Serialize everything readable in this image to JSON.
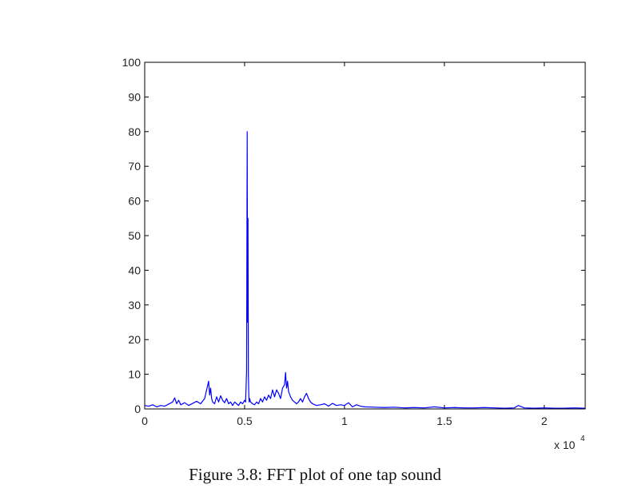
{
  "figure": {
    "caption": "Figure 3.8: FFT plot of one tap sound"
  },
  "chart_data": {
    "type": "line",
    "title": "",
    "xlabel": "",
    "ylabel": "",
    "x_multiplier_label": "x 10",
    "x_multiplier_exponent": "4",
    "xlim": [
      0,
      22050
    ],
    "ylim": [
      0,
      100
    ],
    "x_ticks": [
      {
        "value": 0,
        "label": "0"
      },
      {
        "value": 5000,
        "label": "0.5"
      },
      {
        "value": 10000,
        "label": "1"
      },
      {
        "value": 15000,
        "label": "1.5"
      },
      {
        "value": 20000,
        "label": "2"
      }
    ],
    "y_ticks": [
      {
        "value": 0,
        "label": "0"
      },
      {
        "value": 10,
        "label": "10"
      },
      {
        "value": 20,
        "label": "20"
      },
      {
        "value": 30,
        "label": "30"
      },
      {
        "value": 40,
        "label": "40"
      },
      {
        "value": 50,
        "label": "50"
      },
      {
        "value": 60,
        "label": "60"
      },
      {
        "value": 70,
        "label": "70"
      },
      {
        "value": 80,
        "label": "80"
      },
      {
        "value": 90,
        "label": "90"
      },
      {
        "value": 100,
        "label": "100"
      }
    ],
    "grid": false,
    "line_color": "#0000ff",
    "axis_color": "#000000",
    "series": [
      {
        "x": [
          0,
          200,
          400,
          600,
          800,
          1000,
          1200,
          1400,
          1500,
          1600,
          1700,
          1800,
          2000,
          2200,
          2400,
          2600,
          2800,
          3000,
          3100,
          3200,
          3250,
          3300,
          3350,
          3400,
          3500,
          3600,
          3700,
          3800,
          3900,
          4000,
          4100,
          4200,
          4300,
          4400,
          4500,
          4600,
          4700,
          4800,
          4900,
          5000,
          5050,
          5100,
          5130,
          5150,
          5170,
          5190,
          5210,
          5230,
          5250,
          5300,
          5400,
          5500,
          5600,
          5700,
          5800,
          5900,
          6000,
          6100,
          6200,
          6300,
          6400,
          6500,
          6600,
          6700,
          6800,
          6900,
          7000,
          7050,
          7100,
          7150,
          7200,
          7300,
          7400,
          7500,
          7600,
          7700,
          7800,
          7900,
          8000,
          8100,
          8200,
          8300,
          8400,
          8600,
          8800,
          9000,
          9200,
          9400,
          9600,
          9800,
          10000,
          10200,
          10400,
          10600,
          10800,
          11000,
          11500,
          12000,
          12500,
          13000,
          13500,
          14000,
          14500,
          15000,
          15500,
          16000,
          16500,
          17000,
          17500,
          18000,
          18500,
          18700,
          19000,
          19500,
          20000,
          20500,
          21000,
          21500,
          22050
        ],
        "y": [
          1.0,
          0.8,
          1.2,
          0.6,
          1.0,
          0.8,
          1.4,
          2.0,
          3.2,
          1.5,
          2.5,
          1.2,
          1.8,
          1.0,
          1.6,
          2.2,
          1.5,
          3.0,
          5.5,
          8.0,
          4.0,
          6.0,
          3.0,
          2.0,
          1.5,
          3.5,
          2.0,
          3.8,
          2.5,
          1.8,
          3.0,
          1.5,
          2.0,
          1.0,
          2.0,
          1.5,
          1.0,
          2.0,
          1.5,
          2.5,
          2.0,
          11.0,
          80.0,
          25.0,
          55.0,
          10.0,
          4.0,
          2.0,
          3.0,
          2.0,
          1.5,
          1.2,
          2.0,
          1.5,
          3.0,
          2.0,
          3.5,
          2.5,
          4.0,
          3.0,
          5.5,
          3.5,
          5.5,
          4.5,
          3.0,
          6.0,
          7.0,
          10.5,
          6.0,
          8.0,
          5.0,
          3.5,
          2.5,
          2.0,
          1.5,
          2.0,
          3.0,
          2.0,
          3.5,
          4.5,
          3.0,
          2.0,
          1.5,
          1.0,
          1.2,
          1.5,
          0.8,
          1.6,
          1.0,
          1.2,
          1.0,
          1.8,
          0.6,
          1.2,
          0.8,
          0.6,
          0.5,
          0.4,
          0.5,
          0.3,
          0.4,
          0.3,
          0.6,
          0.3,
          0.4,
          0.3,
          0.3,
          0.4,
          0.3,
          0.2,
          0.3,
          1.0,
          0.3,
          0.2,
          0.3,
          0.2,
          0.2,
          0.3,
          0.2
        ]
      }
    ]
  }
}
